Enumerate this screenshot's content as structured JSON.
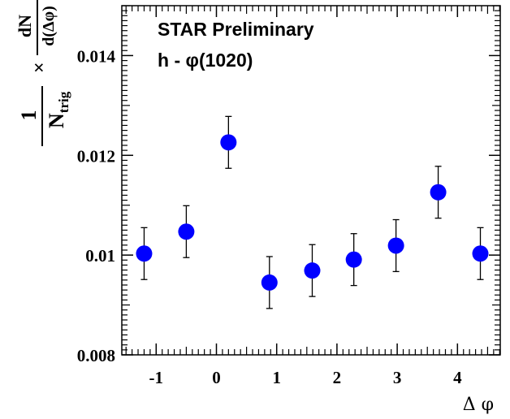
{
  "chart_data": {
    "type": "scatter",
    "xlabel": "Δ φ",
    "ylabel": {
      "factor_numerator": "1",
      "factor_denominator_main": "N",
      "factor_denominator_sub": "trig",
      "times": "×",
      "fraction_numerator": "dN",
      "fraction_denominator": "d(Δφ)"
    },
    "annotations": [
      "STAR Preliminary",
      "h - φ(1020)"
    ],
    "xlim": [
      -1.57,
      4.71
    ],
    "ylim": [
      0.008,
      0.015
    ],
    "x_ticks": [
      -1,
      0,
      1,
      2,
      3,
      4
    ],
    "x_tick_labels": [
      "-1",
      "0",
      "1",
      "2",
      "3",
      "4"
    ],
    "y_ticks": [
      0.008,
      0.01,
      0.012,
      0.014
    ],
    "y_tick_labels": [
      "0.008",
      "0.01",
      "0.012",
      "0.014"
    ],
    "marker_color": "#0000ff",
    "series": [
      {
        "x": [
          -1.2,
          -0.5,
          0.2,
          0.88,
          1.59,
          2.28,
          2.98,
          3.68,
          4.38
        ],
        "y": [
          0.01003,
          0.01047,
          0.01226,
          0.00945,
          0.00969,
          0.00991,
          0.01019,
          0.01126,
          0.01003
        ],
        "yerr": [
          0.00052,
          0.00052,
          0.00052,
          0.00052,
          0.00052,
          0.00052,
          0.00052,
          0.00052,
          0.00052
        ]
      }
    ]
  }
}
